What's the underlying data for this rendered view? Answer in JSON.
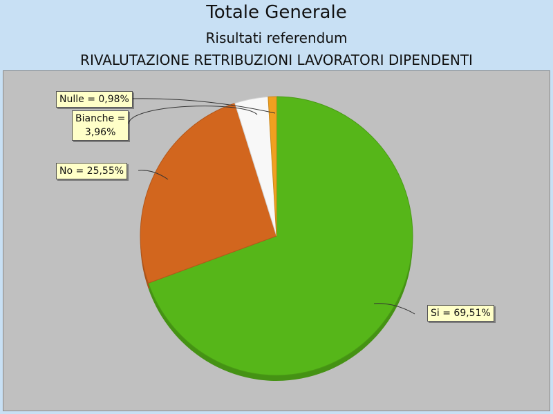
{
  "chart_data": {
    "type": "pie",
    "title": "Totale Generale",
    "subtitle": "Risultati referendum",
    "subtitle2": "RIVALUTAZIONE RETRIBUZIONI LAVORATORI DIPENDENTI",
    "slices": [
      {
        "name": "Si",
        "value": 69.51,
        "label": "Si = 69,51%",
        "color": "#56b619"
      },
      {
        "name": "No",
        "value": 25.55,
        "label": "No = 25,55%",
        "color": "#d2661e"
      },
      {
        "name": "Bianche",
        "value": 3.96,
        "label": "Bianche =\n3,96%",
        "color": "#f8f8f8"
      },
      {
        "name": "Nulle",
        "value": 0.98,
        "label": "Nulle = 0,98%",
        "color": "#f0a020"
      }
    ]
  },
  "colors": {
    "background": "#c8e0f4",
    "plot_area": "#c0c0c0",
    "label_bg": "#ffffc8"
  }
}
